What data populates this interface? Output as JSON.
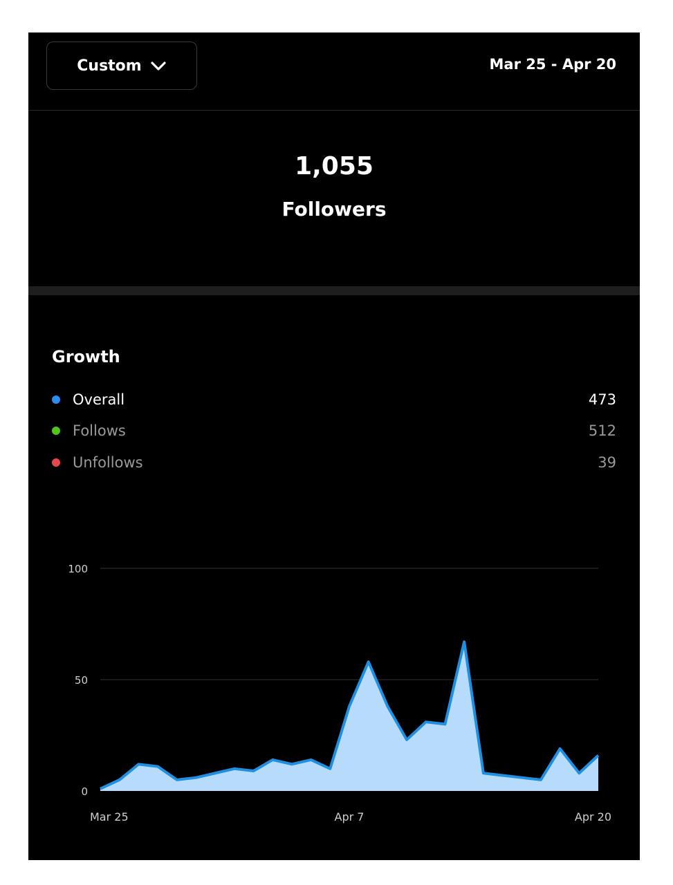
{
  "header": {
    "range_selector_label": "Custom",
    "date_range": "Mar 25 - Apr 20"
  },
  "summary": {
    "count": "1,055",
    "label": "Followers"
  },
  "growth": {
    "title": "Growth",
    "rows": [
      {
        "label": "Overall",
        "value": "473",
        "color": "#2d8cf0",
        "text_color": "#ffffff"
      },
      {
        "label": "Follows",
        "value": "512",
        "color": "#52c41a",
        "text_color": "#9a9a9a"
      },
      {
        "label": "Unfollows",
        "value": "39",
        "color": "#e5484d",
        "text_color": "#9a9a9a"
      }
    ]
  },
  "chart_data": {
    "type": "area",
    "x_tick_labels": [
      "Mar 25",
      "Apr 7",
      "Apr 20"
    ],
    "y_ticks": [
      0,
      50,
      100
    ],
    "ylim": [
      0,
      100
    ],
    "grid": true,
    "line_color": "#1e8fe1",
    "fill_color": "#b7dcfb",
    "series": [
      {
        "x": [
          "Mar 25",
          "Mar 26",
          "Mar 27",
          "Mar 28",
          "Mar 29",
          "Mar 30",
          "Mar 31",
          "Apr 1",
          "Apr 2",
          "Apr 3",
          "Apr 4",
          "Apr 5",
          "Apr 6",
          "Apr 7",
          "Apr 8",
          "Apr 9",
          "Apr 10",
          "Apr 11",
          "Apr 12",
          "Apr 13",
          "Apr 14",
          "Apr 15",
          "Apr 16",
          "Apr 17",
          "Apr 18",
          "Apr 19",
          "Apr 20"
        ],
        "values": [
          1,
          5,
          12,
          11,
          5,
          6,
          8,
          10,
          9,
          14,
          12,
          14,
          10,
          38,
          58,
          38,
          23,
          31,
          30,
          67,
          8,
          7,
          6,
          5,
          19,
          8,
          16
        ]
      }
    ]
  }
}
